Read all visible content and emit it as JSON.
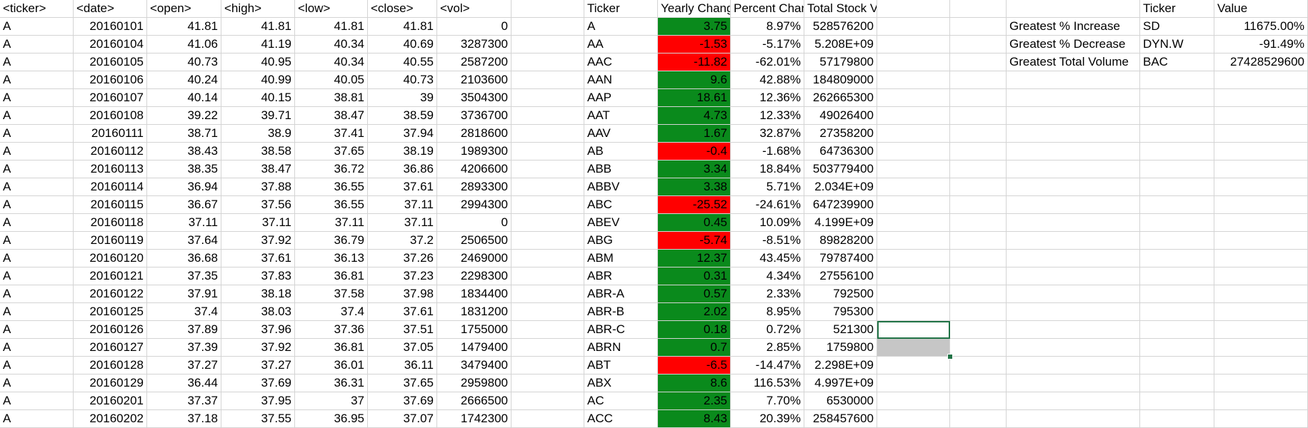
{
  "colors": {
    "positive_fill": "#0a8a1c",
    "negative_fill": "#ff0000",
    "selection_border": "#217346",
    "selected_cell_fill": "#c6c6c6",
    "gridline": "#d4d4d4"
  },
  "raw": {
    "headers": [
      "<ticker>",
      "<date>",
      "<open>",
      "<high>",
      "<low>",
      "<close>",
      "<vol>"
    ],
    "rows": [
      [
        "A",
        "20160101",
        "41.81",
        "41.81",
        "41.81",
        "41.81",
        "0"
      ],
      [
        "A",
        "20160104",
        "41.06",
        "41.19",
        "40.34",
        "40.69",
        "3287300"
      ],
      [
        "A",
        "20160105",
        "40.73",
        "40.95",
        "40.34",
        "40.55",
        "2587200"
      ],
      [
        "A",
        "20160106",
        "40.24",
        "40.99",
        "40.05",
        "40.73",
        "2103600"
      ],
      [
        "A",
        "20160107",
        "40.14",
        "40.15",
        "38.81",
        "39",
        "3504300"
      ],
      [
        "A",
        "20160108",
        "39.22",
        "39.71",
        "38.47",
        "38.59",
        "3736700"
      ],
      [
        "A",
        "20160111",
        "38.71",
        "38.9",
        "37.41",
        "37.94",
        "2818600"
      ],
      [
        "A",
        "20160112",
        "38.43",
        "38.58",
        "37.65",
        "38.19",
        "1989300"
      ],
      [
        "A",
        "20160113",
        "38.35",
        "38.47",
        "36.72",
        "36.86",
        "4206600"
      ],
      [
        "A",
        "20160114",
        "36.94",
        "37.88",
        "36.55",
        "37.61",
        "2893300"
      ],
      [
        "A",
        "20160115",
        "36.67",
        "37.56",
        "36.55",
        "37.11",
        "2994300"
      ],
      [
        "A",
        "20160118",
        "37.11",
        "37.11",
        "37.11",
        "37.11",
        "0"
      ],
      [
        "A",
        "20160119",
        "37.64",
        "37.92",
        "36.79",
        "37.2",
        "2506500"
      ],
      [
        "A",
        "20160120",
        "36.68",
        "37.61",
        "36.13",
        "37.26",
        "2469000"
      ],
      [
        "A",
        "20160121",
        "37.35",
        "37.83",
        "36.81",
        "37.23",
        "2298300"
      ],
      [
        "A",
        "20160122",
        "37.91",
        "38.18",
        "37.58",
        "37.98",
        "1834400"
      ],
      [
        "A",
        "20160125",
        "37.4",
        "38.03",
        "37.4",
        "37.61",
        "1831200"
      ],
      [
        "A",
        "20160126",
        "37.89",
        "37.96",
        "37.36",
        "37.51",
        "1755000"
      ],
      [
        "A",
        "20160127",
        "37.39",
        "37.92",
        "36.81",
        "37.05",
        "1479400"
      ],
      [
        "A",
        "20160128",
        "37.27",
        "37.27",
        "36.01",
        "36.11",
        "3479400"
      ],
      [
        "A",
        "20160129",
        "36.44",
        "37.69",
        "36.31",
        "37.65",
        "2959800"
      ],
      [
        "A",
        "20160201",
        "37.37",
        "37.95",
        "37",
        "37.69",
        "2666500"
      ],
      [
        "A",
        "20160202",
        "37.18",
        "37.55",
        "36.95",
        "37.07",
        "1742300"
      ]
    ]
  },
  "summary": {
    "headers": [
      "Ticker",
      "Yearly Change",
      "Percent Change",
      "Total Stock Volume"
    ],
    "rows": [
      {
        "ticker": "A",
        "change": "3.75",
        "pct": "8.97%",
        "vol": "528576200",
        "sign": "positive"
      },
      {
        "ticker": "AA",
        "change": "-1.53",
        "pct": "-5.17%",
        "vol": "5.208E+09",
        "sign": "negative"
      },
      {
        "ticker": "AAC",
        "change": "-11.82",
        "pct": "-62.01%",
        "vol": "57179800",
        "sign": "negative"
      },
      {
        "ticker": "AAN",
        "change": "9.6",
        "pct": "42.88%",
        "vol": "184809000",
        "sign": "positive"
      },
      {
        "ticker": "AAP",
        "change": "18.61",
        "pct": "12.36%",
        "vol": "262665300",
        "sign": "positive"
      },
      {
        "ticker": "AAT",
        "change": "4.73",
        "pct": "12.33%",
        "vol": "49026400",
        "sign": "positive"
      },
      {
        "ticker": "AAV",
        "change": "1.67",
        "pct": "32.87%",
        "vol": "27358200",
        "sign": "positive"
      },
      {
        "ticker": "AB",
        "change": "-0.4",
        "pct": "-1.68%",
        "vol": "64736300",
        "sign": "negative"
      },
      {
        "ticker": "ABB",
        "change": "3.34",
        "pct": "18.84%",
        "vol": "503779400",
        "sign": "positive"
      },
      {
        "ticker": "ABBV",
        "change": "3.38",
        "pct": "5.71%",
        "vol": "2.034E+09",
        "sign": "positive"
      },
      {
        "ticker": "ABC",
        "change": "-25.52",
        "pct": "-24.61%",
        "vol": "647239900",
        "sign": "negative"
      },
      {
        "ticker": "ABEV",
        "change": "0.45",
        "pct": "10.09%",
        "vol": "4.199E+09",
        "sign": "positive"
      },
      {
        "ticker": "ABG",
        "change": "-5.74",
        "pct": "-8.51%",
        "vol": "89828200",
        "sign": "negative"
      },
      {
        "ticker": "ABM",
        "change": "12.37",
        "pct": "43.45%",
        "vol": "79787400",
        "sign": "positive"
      },
      {
        "ticker": "ABR",
        "change": "0.31",
        "pct": "4.34%",
        "vol": "27556100",
        "sign": "positive"
      },
      {
        "ticker": "ABR-A",
        "change": "0.57",
        "pct": "2.33%",
        "vol": "792500",
        "sign": "positive"
      },
      {
        "ticker": "ABR-B",
        "change": "2.02",
        "pct": "8.95%",
        "vol": "795300",
        "sign": "positive"
      },
      {
        "ticker": "ABR-C",
        "change": "0.18",
        "pct": "0.72%",
        "vol": "521300",
        "sign": "positive"
      },
      {
        "ticker": "ABRN",
        "change": "0.7",
        "pct": "2.85%",
        "vol": "1759800",
        "sign": "positive"
      },
      {
        "ticker": "ABT",
        "change": "-6.5",
        "pct": "-14.47%",
        "vol": "2.298E+09",
        "sign": "negative"
      },
      {
        "ticker": "ABX",
        "change": "8.6",
        "pct": "116.53%",
        "vol": "4.997E+09",
        "sign": "positive"
      },
      {
        "ticker": "AC",
        "change": "2.35",
        "pct": "7.70%",
        "vol": "6530000",
        "sign": "positive"
      },
      {
        "ticker": "ACC",
        "change": "8.43",
        "pct": "20.39%",
        "vol": "258457600",
        "sign": "positive"
      }
    ]
  },
  "greatest": {
    "headers": [
      "Ticker",
      "Value"
    ],
    "rows": [
      {
        "label": "Greatest % Increase",
        "ticker": "SD",
        "value": "11675.00%"
      },
      {
        "label": "Greatest % Decrease",
        "ticker": "DYN.W",
        "value": "-91.49%"
      },
      {
        "label": "Greatest Total Volume",
        "ticker": "BAC",
        "value": "27428529600"
      }
    ]
  }
}
